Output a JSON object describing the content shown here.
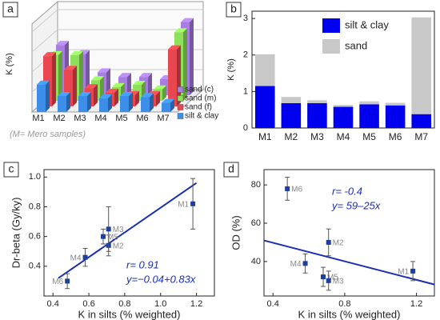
{
  "chart_data": [
    {
      "type": "bar3d",
      "label": "a",
      "y_label": "K (%)",
      "annotation": "(M= Mero samples)",
      "categories": [
        "M1",
        "M2",
        "M3",
        "M4",
        "M5",
        "M6",
        "M7"
      ],
      "ylim": [
        0,
        3.5
      ],
      "series": [
        {
          "name": "silt & clay",
          "color": "#3d8ee8",
          "values": [
            1.2,
            0.7,
            0.7,
            0.6,
            0.7,
            0.65,
            0.4
          ]
        },
        {
          "name": "sand (f)",
          "color": "#e8474f",
          "values": [
            2.2,
            1.6,
            0.8,
            0.6,
            0.5,
            0.5,
            2.5
          ]
        },
        {
          "name": "sand (m)",
          "color": "#8ee05a",
          "values": [
            2.0,
            2.0,
            0.9,
            0.6,
            0.7,
            0.5,
            3.0
          ]
        },
        {
          "name": "sand (c)",
          "color": "#a77ee0",
          "values": [
            2.2,
            1.8,
            1.0,
            0.8,
            0.8,
            0.7,
            3.2
          ]
        }
      ]
    },
    {
      "type": "stacked_bar",
      "label": "b",
      "y_label": "K (%)",
      "categories": [
        "M1",
        "M2",
        "M3",
        "M4",
        "M5",
        "M6",
        "M7"
      ],
      "ylim": [
        0,
        3.2
      ],
      "yticks": [
        0,
        1,
        2,
        3
      ],
      "series": [
        {
          "name": "silt & clay",
          "color": "#0000ee",
          "values": [
            1.15,
            0.68,
            0.68,
            0.58,
            0.65,
            0.62,
            0.38
          ]
        },
        {
          "name": "sand",
          "color": "#c8c8c8",
          "values": [
            0.87,
            0.17,
            0.08,
            0.05,
            0.08,
            0.07,
            2.65
          ]
        }
      ]
    },
    {
      "type": "scatter",
      "label": "c",
      "x_label": "K in silts (% weighted)",
      "y_label": "Dr-beta (Gy/ky)",
      "xlim": [
        0.35,
        1.3
      ],
      "ylim": [
        0.2,
        1.05
      ],
      "xticks": [
        0.4,
        0.6,
        0.8,
        {
          "value": 1,
          "label": "1.0"
        },
        1.2
      ],
      "yticks": [
        0.4,
        0.6,
        0.8,
        {
          "value": 1,
          "label": "1.0"
        }
      ],
      "point_labels": [
        "M1",
        "M2",
        "M3",
        "M4",
        "M5",
        "M6"
      ],
      "x": [
        1.18,
        0.71,
        0.71,
        0.58,
        0.68,
        0.48
      ],
      "values": [
        0.82,
        0.54,
        0.65,
        0.46,
        0.6,
        0.3
      ],
      "errors": [
        0.17,
        0.07,
        0.15,
        0.06,
        0.05,
        0.05
      ],
      "color": "#1f3f9f",
      "fit": {
        "x": [
          0.43,
          1.2
        ],
        "y": [
          0.32,
          0.96
        ],
        "color": "#1a2fb0"
      },
      "stat_texts": [
        "r= 0.91",
        "y=−0.04+0.83x"
      ]
    },
    {
      "type": "scatter",
      "label": "d",
      "x_label": "K in silts (% weighted)",
      "y_label": "OD (%)",
      "xlim": [
        0.35,
        1.3
      ],
      "ylim": [
        22,
        88
      ],
      "xticks": [
        0.4,
        0.8,
        1.2
      ],
      "yticks": [
        40,
        60,
        80
      ],
      "point_labels": [
        "M6",
        "M2",
        "M4",
        "M5",
        "M3",
        "M1"
      ],
      "x": [
        0.48,
        0.71,
        0.58,
        0.68,
        0.71,
        1.18
      ],
      "values": [
        78,
        50,
        39,
        32,
        30,
        35
      ],
      "errors": [
        6,
        7,
        5,
        5,
        5,
        5
      ],
      "color": "#1f3f9f",
      "fit": {
        "x": [
          0.35,
          1.3
        ],
        "y": [
          51,
          28
        ],
        "color": "#1a2fb0"
      },
      "stat_texts": [
        "r= -0.4",
        "y= 59–25x"
      ]
    }
  ]
}
